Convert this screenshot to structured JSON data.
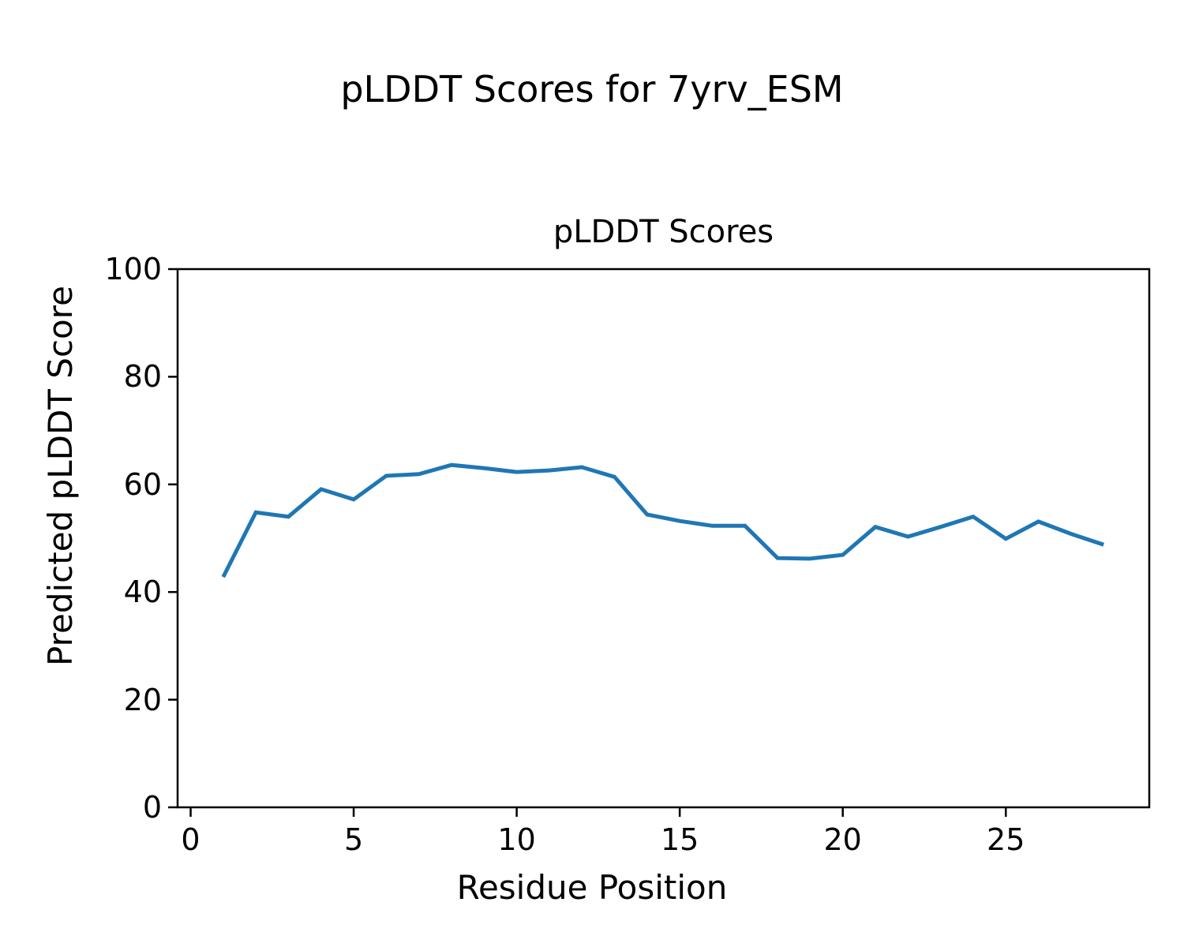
{
  "figure": {
    "suptitle": "pLDDT Scores for 7yrv_ESM"
  },
  "chart_data": {
    "type": "line",
    "title": "pLDDT Scores",
    "xlabel": "Residue Position",
    "ylabel": "Predicted pLDDT Score",
    "series": [
      {
        "name": "pLDDT",
        "x": [
          1,
          2,
          3,
          4,
          5,
          6,
          7,
          8,
          9,
          10,
          11,
          12,
          13,
          14,
          15,
          16,
          17,
          18,
          19,
          20,
          21,
          22,
          23,
          24,
          25,
          26,
          27,
          28
        ],
        "values": [
          42.8,
          54.8,
          54.0,
          59.1,
          57.2,
          61.6,
          61.9,
          63.6,
          63.0,
          62.3,
          62.6,
          63.2,
          61.4,
          54.4,
          53.2,
          52.3,
          52.3,
          46.3,
          46.2,
          46.9,
          52.1,
          50.3,
          52.1,
          54.0,
          49.9,
          53.1,
          50.8,
          48.8
        ]
      }
    ],
    "xticks": [
      0,
      5,
      10,
      15,
      20,
      25
    ],
    "yticks": [
      0,
      20,
      40,
      60,
      80,
      100
    ],
    "xlim": [
      -0.4,
      29.4
    ],
    "ylim": [
      0,
      100
    ],
    "grid": false,
    "legend": null,
    "line_color": "#1f77b4",
    "axis_color": "#000000"
  }
}
